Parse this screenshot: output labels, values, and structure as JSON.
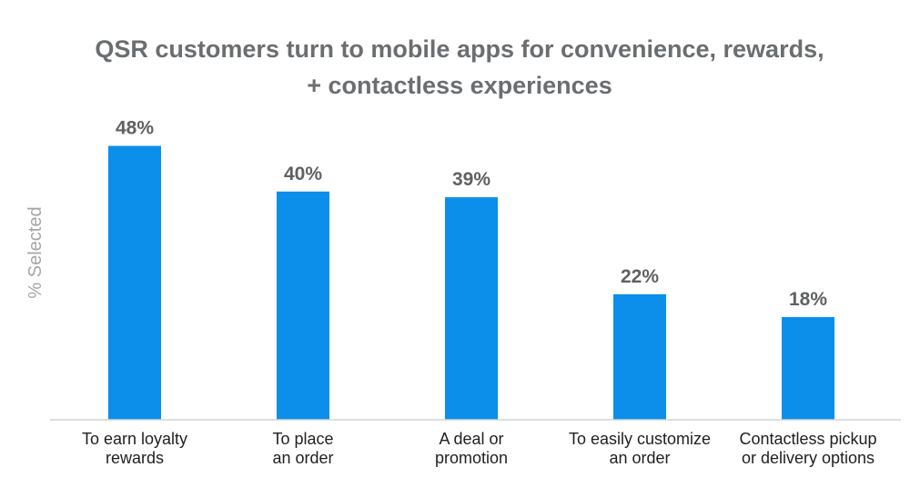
{
  "chart_data": {
    "type": "bar",
    "title_lines": [
      "QSR customers turn to mobile apps for convenience, rewards,",
      "+ contactless experiences"
    ],
    "ylabel": "% Selected",
    "xlabel": "",
    "categories": [
      [
        "To earn loyalty",
        "rewards"
      ],
      [
        "To place",
        "an order"
      ],
      [
        "A deal or",
        "promotion"
      ],
      [
        "To easily customize",
        "an order"
      ],
      [
        "Contactless pickup",
        "or delivery options"
      ]
    ],
    "values": [
      48,
      40,
      39,
      22,
      18
    ],
    "data_labels": [
      "48%",
      "40%",
      "39%",
      "22%",
      "18%"
    ],
    "unit": "%",
    "ylim": [
      0,
      50
    ],
    "bar_color": "#0b8fea",
    "grid": false,
    "legend": "none"
  }
}
